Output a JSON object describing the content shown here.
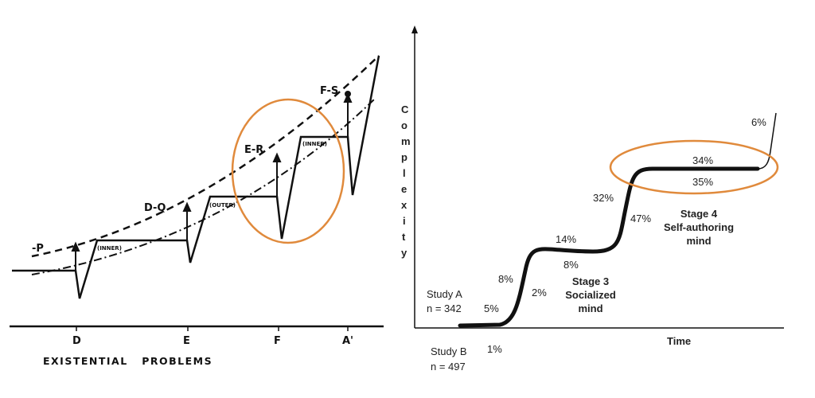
{
  "left": {
    "level_labels": [
      "-P",
      "D-Q",
      "E-R",
      "F-S"
    ],
    "bracket_labels": [
      "(INNER)",
      "(OUTER)",
      "(INNER)"
    ],
    "axis_ticks": [
      "D",
      "E",
      "F",
      "A'"
    ],
    "axis_title": "EXISTENTIAL   PROBLEMS",
    "highlight_color": "#e08a3c"
  },
  "right": {
    "y_axis_label": [
      "C",
      "o",
      "m",
      "p",
      "l",
      "e",
      "x",
      "i",
      "t",
      "y"
    ],
    "x_axis_label": "Time",
    "study_a": {
      "name": "Study A",
      "n": "n = 342"
    },
    "study_b": {
      "name": "Study B",
      "n": "n = 497"
    },
    "percentages": {
      "a_5": "5%",
      "b_1": "1%",
      "a_8": "8%",
      "b_2": "2%",
      "a_14": "14%",
      "b_8": "8%",
      "a_32": "32%",
      "b_47": "47%",
      "a_34": "34%",
      "b_35": "35%",
      "a_6": "6%"
    },
    "stage3": [
      "Stage 3",
      "Socialized",
      "mind"
    ],
    "stage4": [
      "Stage 4",
      "Self-authoring",
      "mind"
    ],
    "highlight_color": "#e08a3c"
  }
}
